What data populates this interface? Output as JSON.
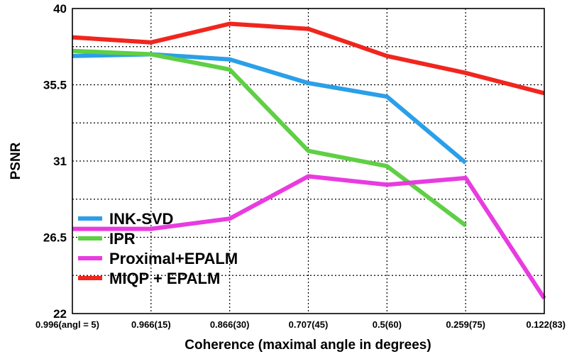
{
  "chart_data": {
    "type": "line",
    "xlabel": "Coherence (maximal angle in degrees)",
    "ylabel": "PSNR",
    "categories": [
      "0.996(angl = 5)",
      "0.966(15)",
      "0.866(30)",
      "0.707(45)",
      "0.5(60)",
      "0.259(75)",
      "0.122(83)"
    ],
    "yticks": [
      "22",
      "26.5",
      "31",
      "35.5",
      "40"
    ],
    "ylim": [
      22,
      40
    ],
    "grid": true,
    "legend_position": "bottom-left",
    "series": [
      {
        "name": "INK-SVD",
        "color": "#2b9fe8",
        "values": [
          37.2,
          37.3,
          37.0,
          35.6,
          34.8,
          30.9,
          null
        ]
      },
      {
        "name": "IPR",
        "color": "#5fcf45",
        "values": [
          37.5,
          37.3,
          36.4,
          31.6,
          30.7,
          27.2,
          null
        ]
      },
      {
        "name": "Proximal+EPALM",
        "color": "#e83be0",
        "values": [
          27.0,
          27.0,
          27.6,
          30.1,
          29.6,
          30.0,
          22.9
        ]
      },
      {
        "name": "MIQP + EPALM",
        "color": "#f0261e",
        "values": [
          38.3,
          38.0,
          39.1,
          38.8,
          37.2,
          36.2,
          35.0
        ]
      }
    ]
  }
}
